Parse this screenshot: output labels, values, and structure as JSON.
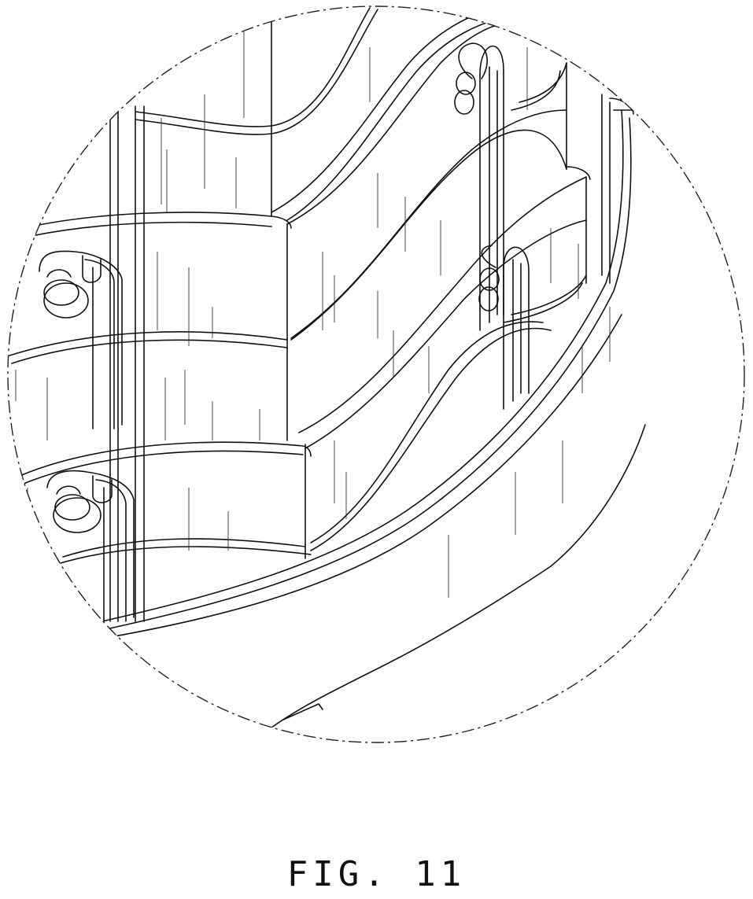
{
  "figure": {
    "label": "FIG. 11"
  }
}
